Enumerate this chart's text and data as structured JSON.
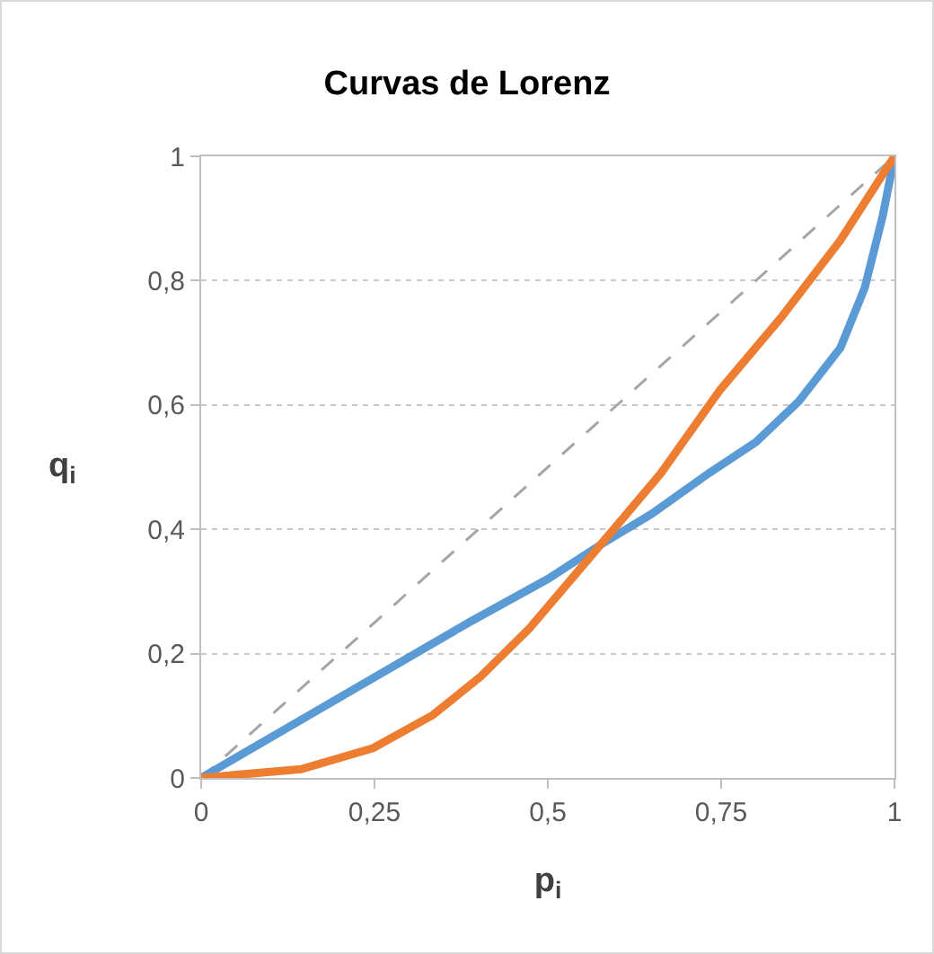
{
  "chart_data": {
    "type": "line",
    "title": "Curvas de Lorenz",
    "xlabel": "p$_{i}$",
    "ylabel": "q$_{i}$",
    "series": [
      {
        "color": "#a5a5a5",
        "line_style": "dashed",
        "x": [
          0,
          1
        ],
        "values": [
          0,
          1
        ]
      },
      {
        "color": "#5b9bd5",
        "x": [
          0,
          0.1,
          0.23,
          0.386,
          0.5,
          0.576,
          0.65,
          0.732,
          0.8,
          0.862,
          0.922,
          0.957,
          0.983,
          1
        ],
        "values": [
          0,
          0.065,
          0.149,
          0.25,
          0.32,
          0.375,
          0.425,
          0.49,
          0.54,
          0.606,
          0.692,
          0.788,
          0.904,
          1
        ]
      },
      {
        "color": "#ed7d31",
        "x": [
          0,
          0.144,
          0.248,
          0.334,
          0.403,
          0.473,
          0.576,
          0.663,
          0.749,
          0.836,
          0.922,
          1
        ],
        "values": [
          0,
          0.014,
          0.048,
          0.101,
          0.163,
          0.24,
          0.375,
          0.49,
          0.625,
          0.74,
          0.865,
          1
        ]
      }
    ],
    "xlim": [
      0,
      1
    ],
    "xticks": [
      0,
      {
        "value": 0.25,
        "label": "0,25"
      },
      {
        "value": 0.5,
        "label": "0,5"
      },
      {
        "value": 0.75,
        "label": "0,75"
      },
      1
    ],
    "ylim": [
      0,
      1
    ],
    "yticks": [
      0,
      {
        "value": 0.2,
        "label": "0,2"
      },
      {
        "value": 0.4,
        "label": "0,4"
      },
      {
        "value": 0.6,
        "label": "0,6"
      },
      {
        "value": 0.8,
        "label": "0,8"
      },
      1
    ],
    "grid": "y",
    "marker": "none",
    "line_style": "solid"
  }
}
